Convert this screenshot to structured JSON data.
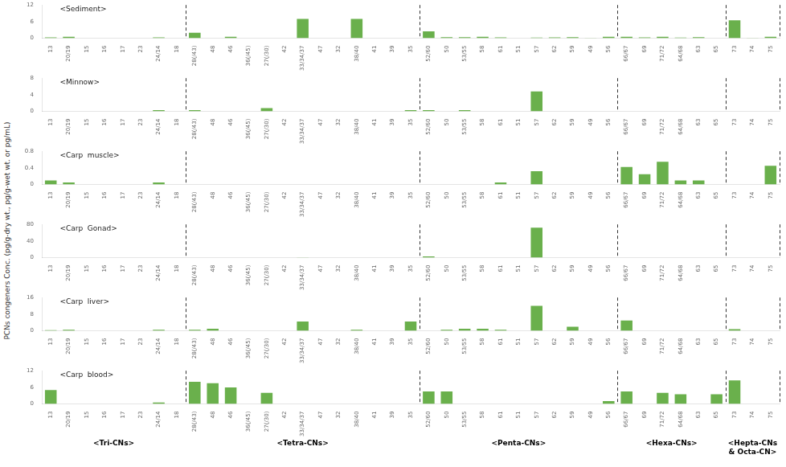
{
  "chart_data": [
    {
      "type": "bar",
      "title": "<Sediment>",
      "ylabel": "PCNs congeners Conc. (pg/g-dry wt., pg/g-wet wt. or pg/mL)",
      "categories": [
        "13",
        "20/19",
        "15",
        "16",
        "17",
        "23",
        "24/14",
        "18",
        "28(/43)",
        "48",
        "46",
        "36(/45)",
        "27(/30)",
        "42",
        "33/34/37",
        "47",
        "32",
        "38/40",
        "41",
        "39",
        "35",
        "52/60",
        "50",
        "53/55",
        "58",
        "61",
        "51",
        "57",
        "62",
        "59",
        "49",
        "56",
        "66/67",
        "69",
        "71/72",
        "64/68",
        "63",
        "65",
        "73",
        "74",
        "75"
      ],
      "values": [
        0.3,
        0.5,
        0.0,
        0.0,
        0.0,
        0.0,
        0.3,
        0.0,
        2.0,
        0.0,
        0.5,
        0.0,
        0.0,
        0.0,
        7.0,
        0.0,
        0.0,
        7.0,
        0.0,
        0.0,
        0.0,
        2.5,
        0.4,
        0.4,
        0.5,
        0.3,
        0.0,
        0.2,
        0.3,
        0.4,
        0.1,
        0.5,
        0.5,
        0.3,
        0.5,
        0.2,
        0.4,
        0.0,
        6.5,
        0.1,
        0.5
      ],
      "color": "#6ab04c",
      "ylim": [
        0,
        12
      ],
      "yticks": [
        0,
        6,
        12
      ],
      "grid": false
    },
    {
      "type": "bar",
      "title": "<Minnow>",
      "categories": [
        "13",
        "20/19",
        "15",
        "16",
        "17",
        "23",
        "24/14",
        "18",
        "28(/43)",
        "48",
        "46",
        "36(/45)",
        "27(/30)",
        "42",
        "33/34/37",
        "47",
        "32",
        "38/40",
        "41",
        "39",
        "35",
        "52/60",
        "50",
        "53/55",
        "58",
        "61",
        "51",
        "57",
        "62",
        "59",
        "49",
        "56",
        "66/67",
        "69",
        "71/72",
        "64/68",
        "63",
        "65",
        "73",
        "74",
        "75"
      ],
      "values": [
        0.0,
        0.0,
        0.0,
        0.0,
        0.0,
        0.0,
        0.3,
        0.0,
        0.3,
        0.0,
        0.0,
        0.0,
        0.8,
        0.0,
        0.0,
        0.0,
        0.0,
        0.0,
        0.0,
        0.0,
        0.3,
        0.3,
        0.0,
        0.3,
        0.0,
        0.0,
        0.0,
        4.8,
        0.0,
        0.0,
        0.0,
        0.0,
        0.0,
        0.0,
        0.0,
        0.0,
        0.0,
        0.0,
        0.0,
        0.0,
        0.0
      ],
      "color": "#6ab04c",
      "ylim": [
        0,
        8
      ],
      "yticks": [
        0,
        4,
        8
      ],
      "grid": false
    },
    {
      "type": "bar",
      "title": "<Carp  muscle>",
      "categories": [
        "13",
        "20/19",
        "15",
        "16",
        "17",
        "23",
        "24/14",
        "18",
        "28(/43)",
        "48",
        "46",
        "36(/45)",
        "27(/30)",
        "42",
        "33/34/37",
        "47",
        "32",
        "38/40",
        "41",
        "39",
        "35",
        "52/60",
        "50",
        "53/55",
        "58",
        "61",
        "51",
        "57",
        "62",
        "59",
        "49",
        "56",
        "66/67",
        "69",
        "71/72",
        "64/68",
        "63",
        "65",
        "73",
        "74",
        "75"
      ],
      "values": [
        0.1,
        0.05,
        0.0,
        0.0,
        0.0,
        0.0,
        0.05,
        0.0,
        0.0,
        0.0,
        0.0,
        0.0,
        0.0,
        0.0,
        0.0,
        0.0,
        0.0,
        0.0,
        0.0,
        0.0,
        0.0,
        0.0,
        0.0,
        0.0,
        0.0,
        0.05,
        0.0,
        0.32,
        0.0,
        0.0,
        0.0,
        0.0,
        0.42,
        0.25,
        0.55,
        0.1,
        0.1,
        0.0,
        0.0,
        0.0,
        0.45
      ],
      "color": "#6ab04c",
      "ylim": [
        0,
        0.8
      ],
      "yticks": [
        0,
        0.4,
        0.8
      ],
      "grid": false
    },
    {
      "type": "bar",
      "title": "<Carp  Gonad>",
      "categories": [
        "13",
        "20/19",
        "15",
        "16",
        "17",
        "23",
        "24/14",
        "18",
        "28(/43)",
        "48",
        "46",
        "36(/45)",
        "27(/30)",
        "42",
        "33/34/37",
        "47",
        "32",
        "38/40",
        "41",
        "39",
        "35",
        "52/60",
        "50",
        "53/55",
        "58",
        "61",
        "51",
        "57",
        "62",
        "59",
        "49",
        "56",
        "66/67",
        "69",
        "71/72",
        "64/68",
        "63",
        "65",
        "73",
        "74",
        "75"
      ],
      "values": [
        0.0,
        0.0,
        0.0,
        0.0,
        0.0,
        0.0,
        0.0,
        0.0,
        0.0,
        0.0,
        0.0,
        0.0,
        0.0,
        0.0,
        0.5,
        0.0,
        0.0,
        0.0,
        0.0,
        0.0,
        0.0,
        3.0,
        0.0,
        0.0,
        0.0,
        0.0,
        0.0,
        72.0,
        0.0,
        0.0,
        0.0,
        0.0,
        0.0,
        0.0,
        0.0,
        0.0,
        0.0,
        0.0,
        0.0,
        0.0,
        0.0
      ],
      "color": "#6ab04c",
      "ylim": [
        0,
        80
      ],
      "yticks": [
        0,
        40,
        80
      ],
      "grid": false
    },
    {
      "type": "bar",
      "title": "<Carp  liver>",
      "categories": [
        "13",
        "20/19",
        "15",
        "16",
        "17",
        "23",
        "24/14",
        "18",
        "28(/43)",
        "48",
        "46",
        "36(/45)",
        "27(/30)",
        "42",
        "33/34/37",
        "47",
        "32",
        "38/40",
        "41",
        "39",
        "35",
        "52/60",
        "50",
        "53/55",
        "58",
        "61",
        "51",
        "57",
        "62",
        "59",
        "49",
        "56",
        "66/67",
        "69",
        "71/72",
        "64/68",
        "63",
        "65",
        "73",
        "74",
        "75"
      ],
      "values": [
        0.3,
        0.5,
        0.0,
        0.0,
        0.0,
        0.0,
        0.5,
        0.0,
        0.5,
        1.0,
        0.0,
        0.0,
        0.0,
        0.0,
        4.5,
        0.0,
        0.0,
        0.5,
        0.0,
        0.0,
        4.5,
        0.0,
        0.5,
        1.0,
        1.0,
        0.5,
        0.0,
        12.0,
        0.0,
        2.0,
        0.0,
        0.0,
        5.0,
        0.0,
        0.0,
        0.0,
        0.0,
        0.0,
        0.8,
        0.0,
        0.0
      ],
      "color": "#6ab04c",
      "ylim": [
        0,
        16
      ],
      "yticks": [
        0,
        8,
        16
      ],
      "grid": false
    },
    {
      "type": "bar",
      "title": "<Carp  blood>",
      "categories": [
        "13",
        "20/19",
        "15",
        "16",
        "17",
        "23",
        "24/14",
        "18",
        "28(/43)",
        "48",
        "46",
        "36(/45)",
        "27(/30)",
        "42",
        "33/34/37",
        "47",
        "32",
        "38/40",
        "41",
        "39",
        "35",
        "52/60",
        "50",
        "53/55",
        "58",
        "61",
        "51",
        "57",
        "62",
        "59",
        "49",
        "56",
        "66/67",
        "69",
        "71/72",
        "64/68",
        "63",
        "65",
        "73",
        "74",
        "75"
      ],
      "values": [
        5.0,
        0.0,
        0.0,
        0.0,
        0.0,
        0.0,
        0.5,
        0.0,
        8.0,
        7.5,
        6.0,
        0.0,
        4.0,
        0.0,
        0.0,
        0.0,
        0.0,
        0.0,
        0.0,
        0.0,
        0.0,
        4.5,
        4.5,
        0.0,
        0.0,
        0.0,
        0.0,
        0.0,
        0.0,
        0.0,
        0.0,
        1.0,
        4.5,
        0.0,
        4.0,
        3.5,
        0.0,
        3.5,
        8.5,
        0.0,
        0.0
      ],
      "color": "#6ab04c",
      "ylim": [
        0,
        12
      ],
      "yticks": [
        0,
        6,
        12
      ],
      "grid": false,
      "annotations": [
        {
          "text": "<Tri-CNs>",
          "from": "13",
          "to": "18"
        },
        {
          "text": "<Tetra-CNs>",
          "from": "28(/43)",
          "to": "35"
        },
        {
          "text": "<Penta-CNs>",
          "from": "52/60",
          "to": "56"
        },
        {
          "text": "<Hexa-CNs>",
          "from": "66/67",
          "to": "65"
        },
        {
          "text": "<Hepta-CNs\n& Octa-CN>",
          "from": "73",
          "to": "75"
        }
      ]
    }
  ]
}
